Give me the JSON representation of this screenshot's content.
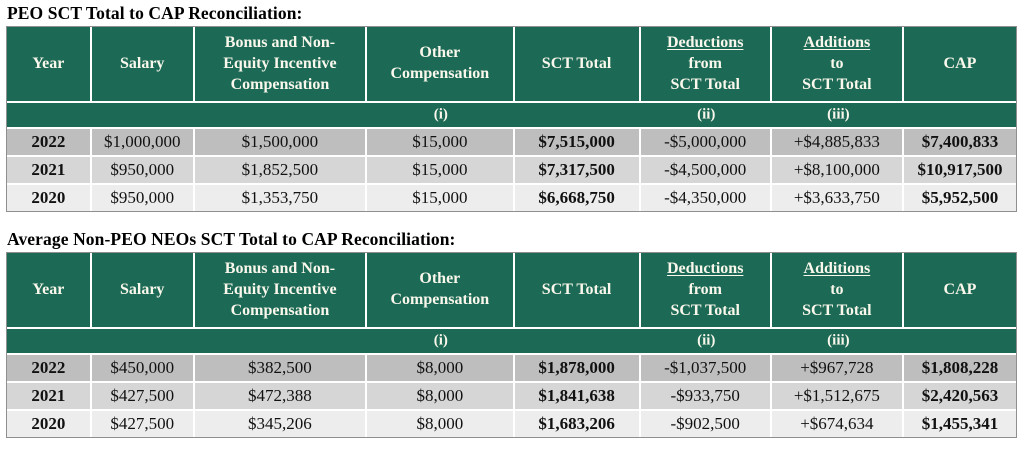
{
  "colors": {
    "header_green": "#1C6A55",
    "header_text": "#FAF7EC",
    "row_dark": "#BEBEBE",
    "row_mid": "#D6D6D6",
    "row_light": "#EDEDED"
  },
  "bold_columns": [
    0,
    4,
    7
  ],
  "tables": [
    {
      "title": "PEO SCT Total to CAP Reconciliation:",
      "header": [
        {
          "lines": [
            "Year"
          ]
        },
        {
          "lines": [
            "Salary"
          ]
        },
        {
          "lines": [
            "Bonus and Non-",
            "Equity Incentive",
            "Compensation"
          ]
        },
        {
          "lines": [
            "Other",
            "Compensation"
          ]
        },
        {
          "lines": [
            "SCT Total"
          ]
        },
        {
          "lines": [
            "Deductions",
            "from",
            "SCT Total"
          ],
          "underline_line": 0
        },
        {
          "lines": [
            "Additions",
            "to",
            "SCT Total"
          ],
          "underline_line": 0
        },
        {
          "lines": [
            "CAP"
          ]
        }
      ],
      "subheader": [
        "",
        "",
        "",
        "(i)",
        "",
        "(ii)",
        "(iii)",
        ""
      ],
      "rows": [
        [
          "2022",
          "$1,000,000",
          "$1,500,000",
          "$15,000",
          "$7,515,000",
          "-$5,000,000",
          "+$4,885,833",
          "$7,400,833"
        ],
        [
          "2021",
          "$950,000",
          "$1,852,500",
          "$15,000",
          "$7,317,500",
          "-$4,500,000",
          "+$8,100,000",
          "$10,917,500"
        ],
        [
          "2020",
          "$950,000",
          "$1,353,750",
          "$15,000",
          "$6,668,750",
          "-$4,350,000",
          "+$3,633,750",
          "$5,952,500"
        ]
      ]
    },
    {
      "title": "Average Non-PEO NEOs SCT Total to CAP Reconciliation:",
      "header": [
        {
          "lines": [
            "Year"
          ]
        },
        {
          "lines": [
            "Salary"
          ]
        },
        {
          "lines": [
            "Bonus and Non-",
            "Equity Incentive",
            "Compensation"
          ]
        },
        {
          "lines": [
            "Other",
            "Compensation"
          ]
        },
        {
          "lines": [
            "SCT Total"
          ]
        },
        {
          "lines": [
            "Deductions",
            "from",
            "SCT Total"
          ],
          "underline_line": 0
        },
        {
          "lines": [
            "Additions",
            "to",
            "SCT Total"
          ],
          "underline_line": 0
        },
        {
          "lines": [
            "CAP"
          ]
        }
      ],
      "subheader": [
        "",
        "",
        "",
        "(i)",
        "",
        "(ii)",
        "(iii)",
        ""
      ],
      "rows": [
        [
          "2022",
          "$450,000",
          "$382,500",
          "$8,000",
          "$1,878,000",
          "-$1,037,500",
          "+$967,728",
          "$1,808,228"
        ],
        [
          "2021",
          "$427,500",
          "$472,388",
          "$8,000",
          "$1,841,638",
          "-$933,750",
          "+$1,512,675",
          "$2,420,563"
        ],
        [
          "2020",
          "$427,500",
          "$345,206",
          "$8,000",
          "$1,683,206",
          "-$902,500",
          "+$674,634",
          "$1,455,341"
        ]
      ]
    }
  ]
}
